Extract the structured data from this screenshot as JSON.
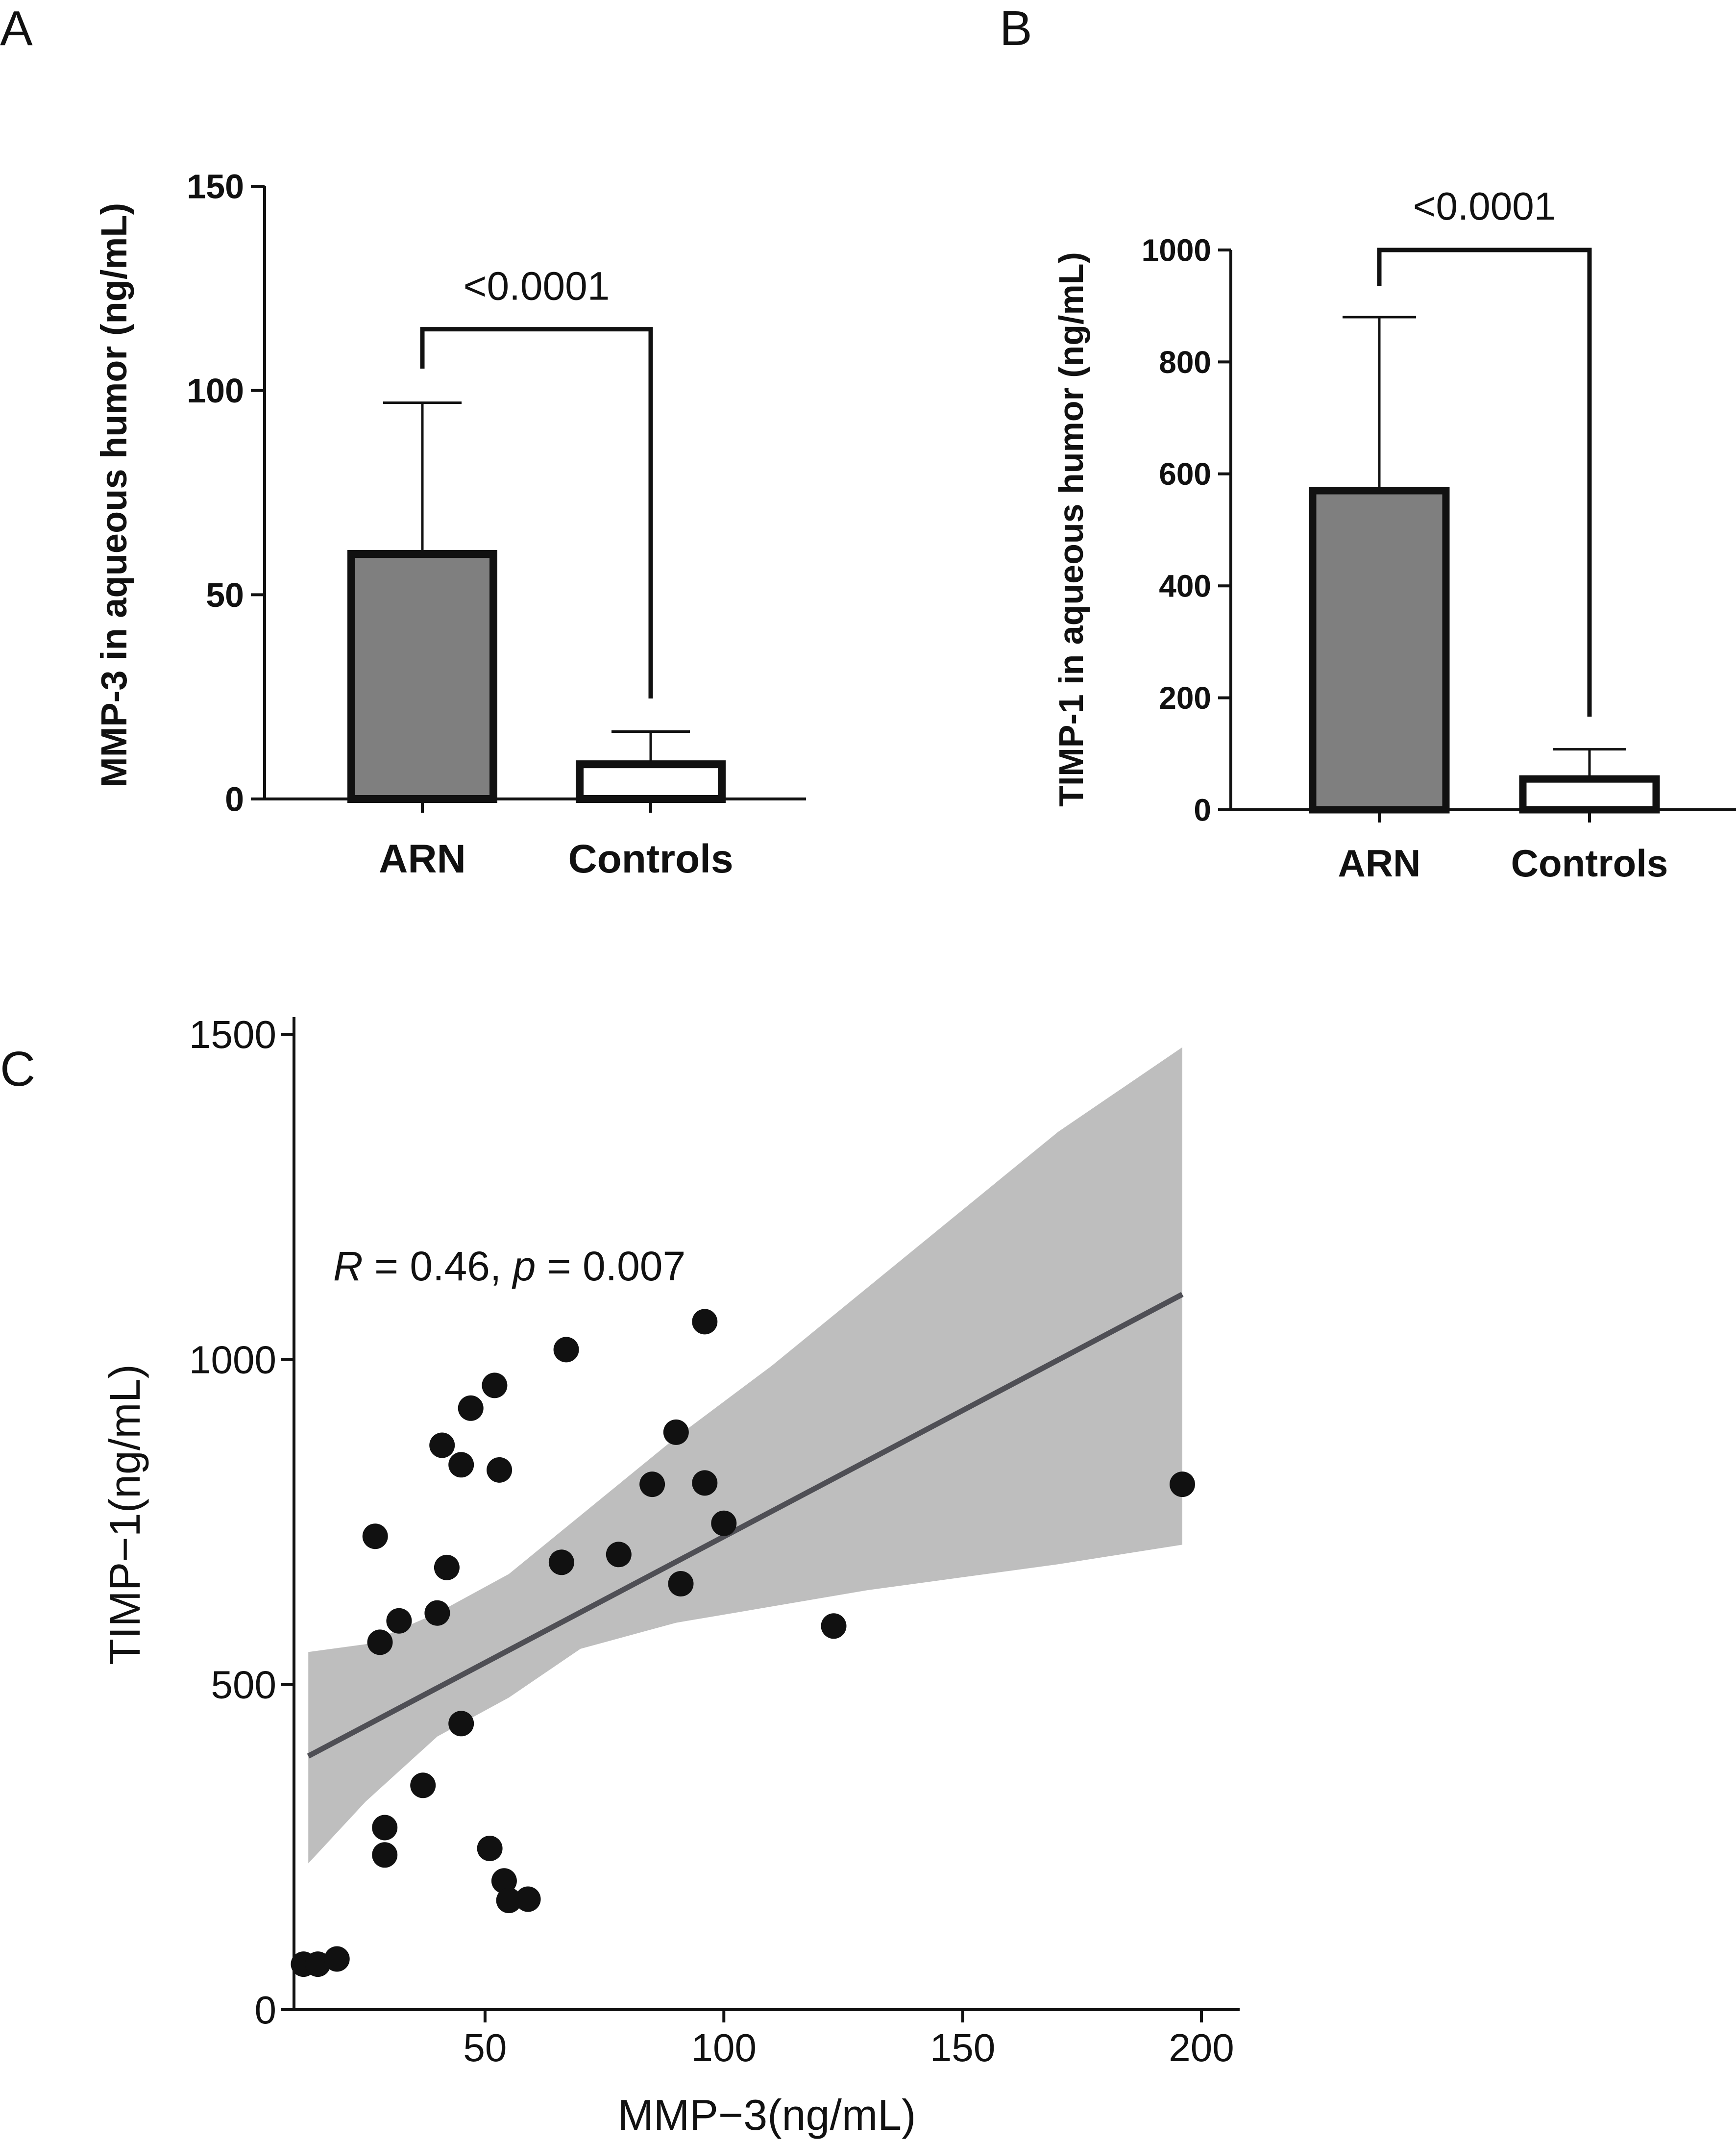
{
  "chart_data": [
    {
      "panel": "A",
      "type": "bar",
      "categories": [
        "ARN",
        "Controls"
      ],
      "values": [
        60,
        8.5
      ],
      "error_upper": [
        97,
        16.5
      ],
      "ylabel": "MMP-3 in aqueous humor (ng/mL)",
      "ylim": [
        0,
        150
      ],
      "yticks": [
        0,
        50,
        100,
        150
      ],
      "ytick_labels": [
        "0",
        "50",
        "100",
        "150"
      ],
      "bar_fill": [
        "#7f7f7f",
        "#ffffff"
      ],
      "significance": {
        "label": "<0.0001",
        "bracket_y": 115
      }
    },
    {
      "panel": "B",
      "type": "bar",
      "categories": [
        "ARN",
        "Controls"
      ],
      "values": [
        570,
        55
      ],
      "error_upper": [
        880,
        108
      ],
      "ylabel": "TIMP-1 in aqueous humor (ng/mL)",
      "ylim": [
        0,
        1000
      ],
      "yticks": [
        0,
        200,
        400,
        600,
        800,
        1000
      ],
      "ytick_labels": [
        "0",
        "200",
        "400",
        "600",
        "800",
        "1000"
      ],
      "bar_fill": [
        "#7f7f7f",
        "#ffffff"
      ],
      "significance": {
        "label": "<0.0001",
        "bracket_y": 1000
      }
    },
    {
      "panel": "C",
      "type": "scatter",
      "xlabel": "MMP−3(ng/mL)",
      "ylabel": "TIMP−1(ng/mL)",
      "xticks": [
        50,
        100,
        150,
        200
      ],
      "xtick_labels": [
        "50",
        "100",
        "150",
        "200"
      ],
      "yticks": [
        0,
        500,
        1000,
        1500
      ],
      "ytick_labels": [
        "0",
        "500",
        "1000",
        "1500"
      ],
      "xlim": [
        10,
        208
      ],
      "ylim": [
        0,
        1500
      ],
      "annotation": {
        "r_label": "R",
        "r_text": " = 0.46, ",
        "p_label": "p",
        "p_text": " = 0.007"
      },
      "points": [
        [
          12,
          70
        ],
        [
          15,
          70
        ],
        [
          19,
          78
        ],
        [
          27,
          728
        ],
        [
          28,
          565
        ],
        [
          29,
          280
        ],
        [
          29,
          238
        ],
        [
          32,
          598
        ],
        [
          37,
          345
        ],
        [
          40,
          610
        ],
        [
          41,
          868
        ],
        [
          42,
          680
        ],
        [
          45,
          838
        ],
        [
          45,
          440
        ],
        [
          47,
          925
        ],
        [
          51,
          248
        ],
        [
          52,
          960
        ],
        [
          53,
          830
        ],
        [
          54,
          198
        ],
        [
          55,
          168
        ],
        [
          59,
          170
        ],
        [
          66,
          688
        ],
        [
          67,
          1015
        ],
        [
          78,
          700
        ],
        [
          85,
          808
        ],
        [
          90,
          888
        ],
        [
          91,
          655
        ],
        [
          96,
          1058
        ],
        [
          96,
          810
        ],
        [
          100,
          748
        ],
        [
          123,
          590
        ],
        [
          196,
          808
        ]
      ],
      "fit_line": {
        "x": [
          13,
          196
        ],
        "y": [
          390,
          1100
        ]
      },
      "confidence_band": {
        "x": [
          13,
          25,
          40,
          55,
          70,
          90,
          110,
          130,
          150,
          170,
          196
        ],
        "upper": [
          550,
          562,
          610,
          670,
          760,
          880,
          990,
          1110,
          1230,
          1350,
          1480
        ],
        "lower": [
          225,
          320,
          420,
          480,
          555,
          595,
          620,
          645,
          665,
          685,
          715
        ]
      },
      "fill_colors": {
        "band": "#bebebe",
        "line": "#4f4f55",
        "point": "#111111"
      }
    }
  ]
}
